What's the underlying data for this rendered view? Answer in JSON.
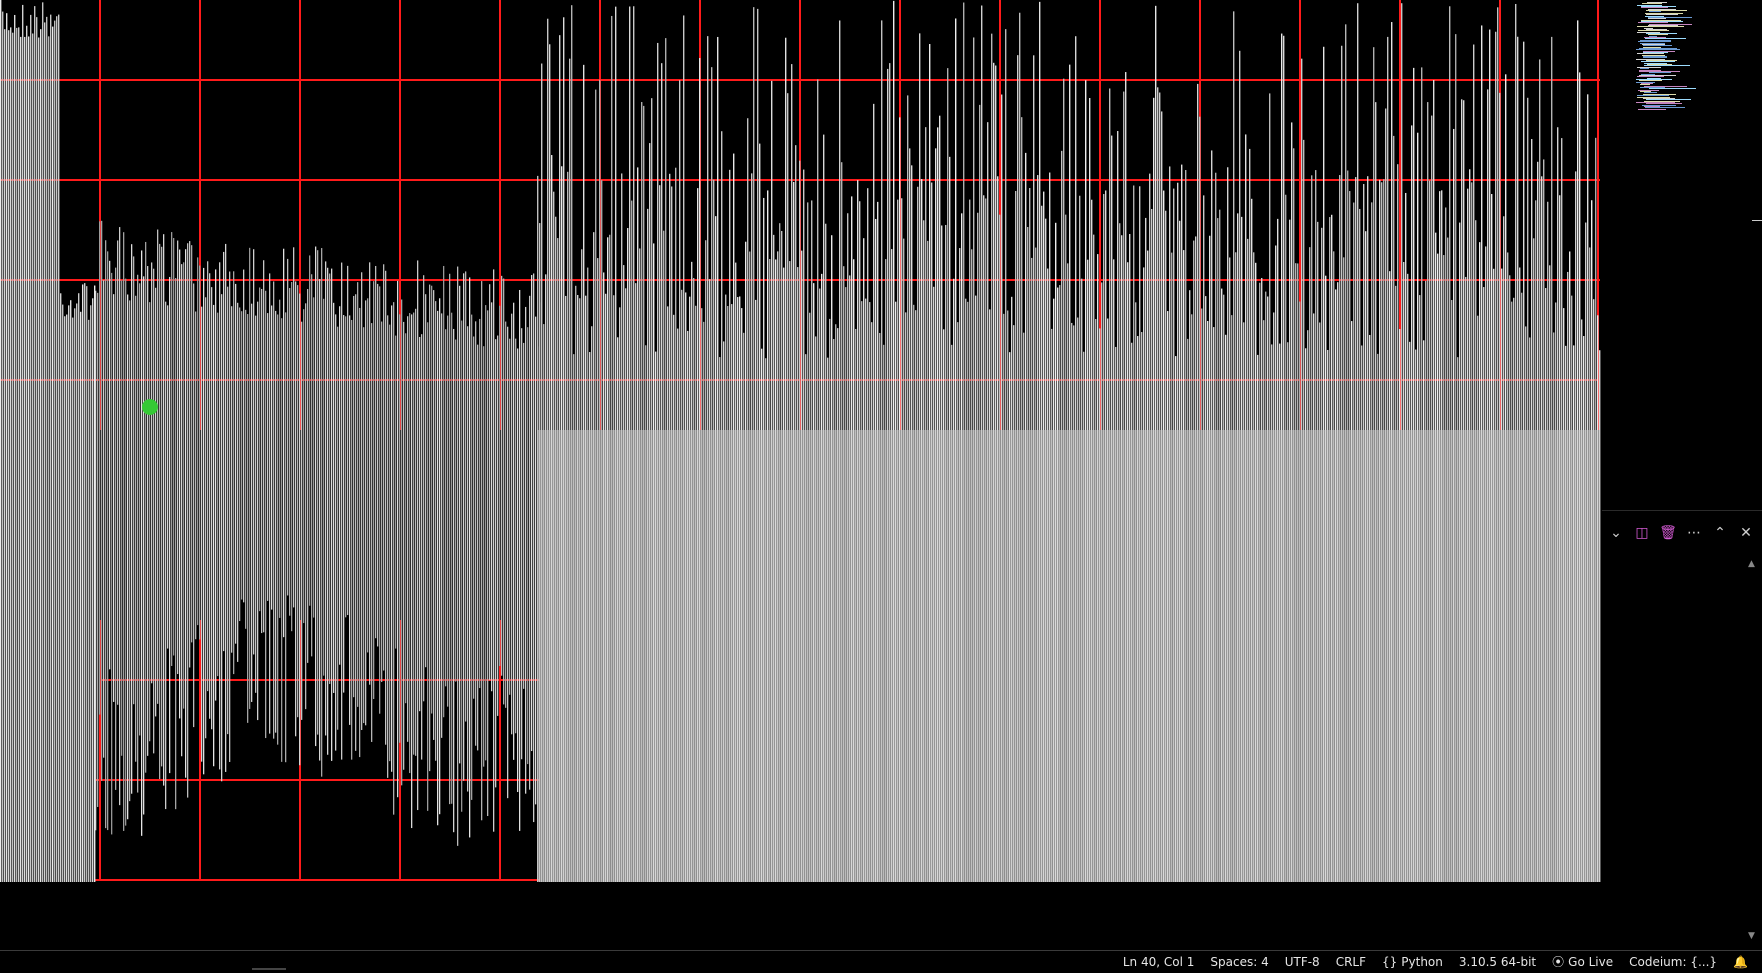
{
  "colors": {
    "background": "#000000",
    "grid_line": "#ff1a1a",
    "bar": "#cfcfcf",
    "marker": "#35c935",
    "accent_icon": "#d35ad3"
  },
  "viewport": {
    "description_icons": [
      "grid-canvas"
    ]
  },
  "panel": {
    "actions": [
      {
        "name": "chevron-down-icon",
        "glyph": "⌄"
      },
      {
        "name": "split-editor-icon",
        "glyph": "◫"
      },
      {
        "name": "trash-icon",
        "glyph": "🗑"
      },
      {
        "name": "more-actions-icon",
        "glyph": "⋯"
      },
      {
        "name": "maximize-panel-icon",
        "glyph": "⌃"
      },
      {
        "name": "close-panel-icon",
        "glyph": "✕"
      }
    ]
  },
  "statusbar": {
    "cursor_position": "Ln 40, Col 1",
    "indentation": "Spaces: 4",
    "encoding": "UTF-8",
    "line_ending": "CRLF",
    "language_icon": "{}",
    "language": "Python",
    "interpreter": "3.10.5 64-bit",
    "go_live_icon": "broadcast-icon",
    "go_live": "Go Live",
    "codeium": "Codeium: {...}",
    "notifications_icon": "bell-icon"
  }
}
